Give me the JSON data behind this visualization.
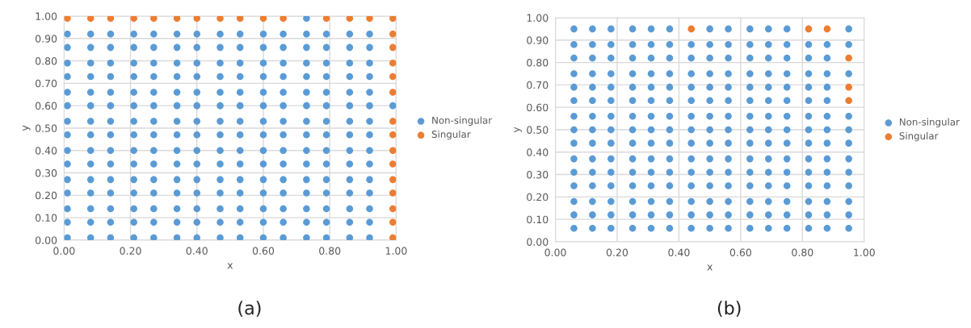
{
  "chart_data": [
    {
      "type": "scatter",
      "xlabel": "x",
      "ylabel": "y",
      "annotations": [
        "(a)"
      ],
      "legend": "right",
      "grid": true,
      "marker": "circle",
      "xlim": [
        0,
        1
      ],
      "ylim": [
        0,
        1
      ],
      "xticks": [
        {
          "value": 0,
          "label": "0.00"
        },
        {
          "value": 0.2,
          "label": "0.20"
        },
        {
          "value": 0.4,
          "label": "0.40"
        },
        {
          "value": 0.6,
          "label": "0.60"
        },
        {
          "value": 0.8,
          "label": "0.80"
        },
        {
          "value": 1,
          "label": "1.00"
        }
      ],
      "yticks": [
        {
          "value": 0,
          "label": "0.00"
        },
        {
          "value": 0.1,
          "label": "0.10"
        },
        {
          "value": 0.2,
          "label": "0.20"
        },
        {
          "value": 0.3,
          "label": "0.30"
        },
        {
          "value": 0.4,
          "label": "0.40"
        },
        {
          "value": 0.5,
          "label": "0.50"
        },
        {
          "value": 0.6,
          "label": "0.60"
        },
        {
          "value": 0.7,
          "label": "0.70"
        },
        {
          "value": 0.8,
          "label": "0.80"
        },
        {
          "value": 0.9,
          "label": "0.90"
        },
        {
          "value": 1,
          "label": "1.00"
        }
      ],
      "series": [
        {
          "name": "Non-singular",
          "color": "#5b9bd5",
          "x": [
            0.01,
            0.08,
            0.14,
            0.21,
            0.27,
            0.34,
            0.4,
            0.47,
            0.53,
            0.6,
            0.66,
            0.73,
            0.79,
            0.86,
            0.92,
            0.01,
            0.08,
            0.14,
            0.21,
            0.27,
            0.34,
            0.4,
            0.47,
            0.53,
            0.6,
            0.66,
            0.73,
            0.79,
            0.86,
            0.92,
            0.01,
            0.08,
            0.14,
            0.21,
            0.27,
            0.34,
            0.4,
            0.47,
            0.53,
            0.6,
            0.66,
            0.73,
            0.79,
            0.86,
            0.92,
            0.01,
            0.08,
            0.14,
            0.21,
            0.27,
            0.34,
            0.4,
            0.47,
            0.53,
            0.6,
            0.66,
            0.73,
            0.79,
            0.86,
            0.92,
            0.01,
            0.08,
            0.14,
            0.21,
            0.27,
            0.34,
            0.4,
            0.47,
            0.53,
            0.6,
            0.66,
            0.73,
            0.79,
            0.86,
            0.92,
            0.01,
            0.08,
            0.14,
            0.21,
            0.27,
            0.34,
            0.4,
            0.47,
            0.53,
            0.6,
            0.66,
            0.73,
            0.79,
            0.86,
            0.92,
            0.01,
            0.08,
            0.14,
            0.21,
            0.27,
            0.34,
            0.4,
            0.47,
            0.53,
            0.6,
            0.66,
            0.73,
            0.79,
            0.86,
            0.92,
            0.01,
            0.08,
            0.14,
            0.21,
            0.27,
            0.34,
            0.4,
            0.47,
            0.53,
            0.6,
            0.66,
            0.73,
            0.79,
            0.86,
            0.92,
            0.01,
            0.08,
            0.14,
            0.21,
            0.27,
            0.34,
            0.4,
            0.47,
            0.53,
            0.6,
            0.66,
            0.73,
            0.79,
            0.86,
            0.92,
            0.01,
            0.08,
            0.14,
            0.21,
            0.27,
            0.34,
            0.4,
            0.47,
            0.53,
            0.6,
            0.66,
            0.73,
            0.79,
            0.86,
            0.92,
            0.01,
            0.08,
            0.14,
            0.21,
            0.27,
            0.34,
            0.4,
            0.47,
            0.53,
            0.6,
            0.66,
            0.73,
            0.79,
            0.86,
            0.92,
            0.01,
            0.08,
            0.14,
            0.21,
            0.27,
            0.34,
            0.4,
            0.47,
            0.53,
            0.6,
            0.66,
            0.73,
            0.79,
            0.86,
            0.92,
            0.01,
            0.08,
            0.14,
            0.21,
            0.27,
            0.34,
            0.4,
            0.47,
            0.53,
            0.6,
            0.66,
            0.73,
            0.79,
            0.86,
            0.92,
            0.01,
            0.08,
            0.14,
            0.21,
            0.27,
            0.34,
            0.4,
            0.47,
            0.53,
            0.6,
            0.66,
            0.73,
            0.79,
            0.86,
            0.92,
            0.01,
            0.08,
            0.14,
            0.21,
            0.27,
            0.34,
            0.4,
            0.47,
            0.53,
            0.6,
            0.66,
            0.73,
            0.79,
            0.86,
            0.92,
            0.99,
            0.73
          ],
          "values": [
            0.01,
            0.01,
            0.01,
            0.01,
            0.01,
            0.01,
            0.01,
            0.01,
            0.01,
            0.01,
            0.01,
            0.01,
            0.01,
            0.01,
            0.01,
            0.08,
            0.08,
            0.08,
            0.08,
            0.08,
            0.08,
            0.08,
            0.08,
            0.08,
            0.08,
            0.08,
            0.08,
            0.08,
            0.08,
            0.08,
            0.14,
            0.14,
            0.14,
            0.14,
            0.14,
            0.14,
            0.14,
            0.14,
            0.14,
            0.14,
            0.14,
            0.14,
            0.14,
            0.14,
            0.14,
            0.21,
            0.21,
            0.21,
            0.21,
            0.21,
            0.21,
            0.21,
            0.21,
            0.21,
            0.21,
            0.21,
            0.21,
            0.21,
            0.21,
            0.21,
            0.27,
            0.27,
            0.27,
            0.27,
            0.27,
            0.27,
            0.27,
            0.27,
            0.27,
            0.27,
            0.27,
            0.27,
            0.27,
            0.27,
            0.27,
            0.34,
            0.34,
            0.34,
            0.34,
            0.34,
            0.34,
            0.34,
            0.34,
            0.34,
            0.34,
            0.34,
            0.34,
            0.34,
            0.34,
            0.34,
            0.4,
            0.4,
            0.4,
            0.4,
            0.4,
            0.4,
            0.4,
            0.4,
            0.4,
            0.4,
            0.4,
            0.4,
            0.4,
            0.4,
            0.4,
            0.47,
            0.47,
            0.47,
            0.47,
            0.47,
            0.47,
            0.47,
            0.47,
            0.47,
            0.47,
            0.47,
            0.47,
            0.47,
            0.47,
            0.47,
            0.53,
            0.53,
            0.53,
            0.53,
            0.53,
            0.53,
            0.53,
            0.53,
            0.53,
            0.53,
            0.53,
            0.53,
            0.53,
            0.53,
            0.53,
            0.6,
            0.6,
            0.6,
            0.6,
            0.6,
            0.6,
            0.6,
            0.6,
            0.6,
            0.6,
            0.6,
            0.6,
            0.6,
            0.6,
            0.6,
            0.66,
            0.66,
            0.66,
            0.66,
            0.66,
            0.66,
            0.66,
            0.66,
            0.66,
            0.66,
            0.66,
            0.66,
            0.66,
            0.66,
            0.66,
            0.73,
            0.73,
            0.73,
            0.73,
            0.73,
            0.73,
            0.73,
            0.73,
            0.73,
            0.73,
            0.73,
            0.73,
            0.73,
            0.73,
            0.73,
            0.79,
            0.79,
            0.79,
            0.79,
            0.79,
            0.79,
            0.79,
            0.79,
            0.79,
            0.79,
            0.79,
            0.79,
            0.79,
            0.79,
            0.79,
            0.86,
            0.86,
            0.86,
            0.86,
            0.86,
            0.86,
            0.86,
            0.86,
            0.86,
            0.86,
            0.86,
            0.86,
            0.86,
            0.86,
            0.86,
            0.92,
            0.92,
            0.92,
            0.92,
            0.92,
            0.92,
            0.92,
            0.92,
            0.92,
            0.92,
            0.92,
            0.92,
            0.92,
            0.92,
            0.92,
            0.6,
            0.99
          ]
        },
        {
          "name": "Singular",
          "color": "#ed7d31",
          "x": [
            0.01,
            0.08,
            0.14,
            0.21,
            0.27,
            0.34,
            0.4,
            0.47,
            0.53,
            0.6,
            0.66,
            0.79,
            0.86,
            0.92,
            0.99,
            0.99,
            0.99,
            0.99,
            0.99,
            0.99,
            0.99,
            0.99,
            0.99,
            0.99,
            0.99,
            0.99,
            0.99,
            0.99,
            0.99
          ],
          "values": [
            0.99,
            0.99,
            0.99,
            0.99,
            0.99,
            0.99,
            0.99,
            0.99,
            0.99,
            0.99,
            0.99,
            0.99,
            0.99,
            0.99,
            0.99,
            0.92,
            0.86,
            0.79,
            0.73,
            0.66,
            0.53,
            0.47,
            0.4,
            0.34,
            0.27,
            0.21,
            0.14,
            0.08,
            0.01
          ]
        }
      ]
    },
    {
      "type": "scatter",
      "xlabel": "x",
      "ylabel": "y",
      "annotations": [
        "(b)"
      ],
      "legend": "right",
      "grid": true,
      "marker": "circle",
      "xlim": [
        0,
        1
      ],
      "ylim": [
        0,
        1
      ],
      "xticks": [
        {
          "value": 0,
          "label": "0.00"
        },
        {
          "value": 0.2,
          "label": "0.20"
        },
        {
          "value": 0.4,
          "label": "0.40"
        },
        {
          "value": 0.6,
          "label": "0.60"
        },
        {
          "value": 0.8,
          "label": "0.80"
        },
        {
          "value": 1,
          "label": "1.00"
        }
      ],
      "yticks": [
        {
          "value": 0,
          "label": "0.00"
        },
        {
          "value": 0.1,
          "label": "0.10"
        },
        {
          "value": 0.2,
          "label": "0.20"
        },
        {
          "value": 0.3,
          "label": "0.30"
        },
        {
          "value": 0.4,
          "label": "0.40"
        },
        {
          "value": 0.5,
          "label": "0.50"
        },
        {
          "value": 0.6,
          "label": "0.60"
        },
        {
          "value": 0.7,
          "label": "0.70"
        },
        {
          "value": 0.8,
          "label": "0.80"
        },
        {
          "value": 0.9,
          "label": "0.90"
        },
        {
          "value": 1,
          "label": "1.00"
        }
      ],
      "series": [
        {
          "name": "Non-singular",
          "color": "#5b9bd5",
          "x": [
            0.06,
            0.12,
            0.18,
            0.25,
            0.31,
            0.37,
            0.44,
            0.5,
            0.56,
            0.63,
            0.69,
            0.75,
            0.82,
            0.88,
            0.95,
            0.06,
            0.12,
            0.18,
            0.25,
            0.31,
            0.37,
            0.44,
            0.5,
            0.56,
            0.63,
            0.69,
            0.75,
            0.82,
            0.88,
            0.95,
            0.06,
            0.12,
            0.18,
            0.25,
            0.31,
            0.37,
            0.44,
            0.5,
            0.56,
            0.63,
            0.69,
            0.75,
            0.82,
            0.88,
            0.95,
            0.06,
            0.12,
            0.18,
            0.25,
            0.31,
            0.37,
            0.44,
            0.5,
            0.56,
            0.63,
            0.69,
            0.75,
            0.82,
            0.88,
            0.95,
            0.06,
            0.12,
            0.18,
            0.25,
            0.31,
            0.37,
            0.44,
            0.5,
            0.56,
            0.63,
            0.69,
            0.75,
            0.82,
            0.88,
            0.95,
            0.06,
            0.12,
            0.18,
            0.25,
            0.31,
            0.37,
            0.44,
            0.5,
            0.56,
            0.63,
            0.69,
            0.75,
            0.82,
            0.88,
            0.95,
            0.06,
            0.12,
            0.18,
            0.25,
            0.31,
            0.37,
            0.44,
            0.5,
            0.56,
            0.63,
            0.69,
            0.75,
            0.82,
            0.88,
            0.95,
            0.06,
            0.12,
            0.18,
            0.25,
            0.31,
            0.37,
            0.44,
            0.5,
            0.56,
            0.63,
            0.69,
            0.75,
            0.82,
            0.88,
            0.95,
            0.06,
            0.12,
            0.18,
            0.25,
            0.31,
            0.37,
            0.44,
            0.5,
            0.56,
            0.63,
            0.69,
            0.75,
            0.82,
            0.88,
            0.95,
            0.06,
            0.12,
            0.18,
            0.25,
            0.31,
            0.37,
            0.44,
            0.5,
            0.56,
            0.63,
            0.69,
            0.75,
            0.82,
            0.88,
            0.06,
            0.12,
            0.18,
            0.25,
            0.31,
            0.37,
            0.44,
            0.5,
            0.56,
            0.63,
            0.69,
            0.75,
            0.82,
            0.88,
            0.06,
            0.12,
            0.18,
            0.25,
            0.31,
            0.37,
            0.44,
            0.5,
            0.56,
            0.63,
            0.69,
            0.75,
            0.82,
            0.88,
            0.95,
            0.06,
            0.12,
            0.18,
            0.25,
            0.31,
            0.37,
            0.44,
            0.5,
            0.56,
            0.63,
            0.69,
            0.75,
            0.82,
            0.88,
            0.06,
            0.12,
            0.18,
            0.25,
            0.31,
            0.37,
            0.44,
            0.5,
            0.56,
            0.63,
            0.69,
            0.75,
            0.82,
            0.88,
            0.95,
            0.06,
            0.12,
            0.18,
            0.25,
            0.31,
            0.37,
            0.5,
            0.56,
            0.63,
            0.69,
            0.75,
            0.95
          ],
          "values": [
            0.06,
            0.06,
            0.06,
            0.06,
            0.06,
            0.06,
            0.06,
            0.06,
            0.06,
            0.06,
            0.06,
            0.06,
            0.06,
            0.06,
            0.06,
            0.12,
            0.12,
            0.12,
            0.12,
            0.12,
            0.12,
            0.12,
            0.12,
            0.12,
            0.12,
            0.12,
            0.12,
            0.12,
            0.12,
            0.12,
            0.18,
            0.18,
            0.18,
            0.18,
            0.18,
            0.18,
            0.18,
            0.18,
            0.18,
            0.18,
            0.18,
            0.18,
            0.18,
            0.18,
            0.18,
            0.25,
            0.25,
            0.25,
            0.25,
            0.25,
            0.25,
            0.25,
            0.25,
            0.25,
            0.25,
            0.25,
            0.25,
            0.25,
            0.25,
            0.25,
            0.31,
            0.31,
            0.31,
            0.31,
            0.31,
            0.31,
            0.31,
            0.31,
            0.31,
            0.31,
            0.31,
            0.31,
            0.31,
            0.31,
            0.31,
            0.37,
            0.37,
            0.37,
            0.37,
            0.37,
            0.37,
            0.37,
            0.37,
            0.37,
            0.37,
            0.37,
            0.37,
            0.37,
            0.37,
            0.37,
            0.44,
            0.44,
            0.44,
            0.44,
            0.44,
            0.44,
            0.44,
            0.44,
            0.44,
            0.44,
            0.44,
            0.44,
            0.44,
            0.44,
            0.44,
            0.5,
            0.5,
            0.5,
            0.5,
            0.5,
            0.5,
            0.5,
            0.5,
            0.5,
            0.5,
            0.5,
            0.5,
            0.5,
            0.5,
            0.5,
            0.56,
            0.56,
            0.56,
            0.56,
            0.56,
            0.56,
            0.56,
            0.56,
            0.56,
            0.56,
            0.56,
            0.56,
            0.56,
            0.56,
            0.56,
            0.63,
            0.63,
            0.63,
            0.63,
            0.63,
            0.63,
            0.63,
            0.63,
            0.63,
            0.63,
            0.63,
            0.63,
            0.63,
            0.63,
            0.69,
            0.69,
            0.69,
            0.69,
            0.69,
            0.69,
            0.69,
            0.69,
            0.69,
            0.69,
            0.69,
            0.69,
            0.69,
            0.69,
            0.75,
            0.75,
            0.75,
            0.75,
            0.75,
            0.75,
            0.75,
            0.75,
            0.75,
            0.75,
            0.75,
            0.75,
            0.75,
            0.75,
            0.75,
            0.82,
            0.82,
            0.82,
            0.82,
            0.82,
            0.82,
            0.82,
            0.82,
            0.82,
            0.82,
            0.82,
            0.82,
            0.82,
            0.82,
            0.88,
            0.88,
            0.88,
            0.88,
            0.88,
            0.88,
            0.88,
            0.88,
            0.88,
            0.88,
            0.88,
            0.88,
            0.88,
            0.88,
            0.88,
            0.95,
            0.95,
            0.95,
            0.95,
            0.95,
            0.95,
            0.95,
            0.95,
            0.95,
            0.95,
            0.95,
            0.95
          ]
        },
        {
          "name": "Singular",
          "color": "#ed7d31",
          "x": [
            0.44,
            0.82,
            0.88,
            0.95,
            0.95,
            0.95
          ],
          "values": [
            0.95,
            0.95,
            0.95,
            0.82,
            0.69,
            0.63
          ]
        }
      ]
    }
  ]
}
